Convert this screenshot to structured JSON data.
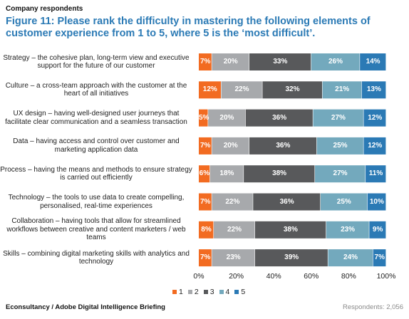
{
  "header": "Company respondents",
  "title": "Figure 11: Please rank the difficulty in mastering the following elements of customer experience from 1 to 5, where 5 is the ‘most difficult’.",
  "source": "Econsultancy / Adobe Digital Intelligence Briefing",
  "respondents": "Respondents: 2,056",
  "chart_data": {
    "type": "bar",
    "orientation": "horizontal",
    "stacked": true,
    "percent_stacked": true,
    "categories": [
      "Strategy – the cohesive plan, long-term view and executive support for the future of our customer",
      "Culture – a cross-team approach with the customer at the heart of all initiatives",
      "UX design – having well-designed user journeys that facilitate clear communication and a seamless transaction",
      "Data – having access and control over customer and marketing application data",
      "Process – having the means and methods to ensure strategy is carried out efficiently",
      "Technology – the tools to use data to create compelling, personalised, real-time experiences",
      "Collaboration – having tools that allow for streamlined workflows between creative and content marketers / web teams",
      "Skills – combining digital marketing skills with analytics and technology"
    ],
    "series": [
      {
        "name": "1",
        "color": "#f26b21",
        "values": [
          7,
          12,
          5,
          7,
          6,
          7,
          8,
          7
        ]
      },
      {
        "name": "2",
        "color": "#a7a9ac",
        "values": [
          20,
          22,
          20,
          20,
          18,
          22,
          22,
          23
        ]
      },
      {
        "name": "3",
        "color": "#58595b",
        "values": [
          33,
          32,
          36,
          36,
          38,
          36,
          38,
          39
        ]
      },
      {
        "name": "4",
        "color": "#73a9bd",
        "values": [
          26,
          21,
          27,
          25,
          27,
          25,
          23,
          24
        ]
      },
      {
        "name": "5",
        "color": "#2b7ab5",
        "values": [
          14,
          13,
          12,
          12,
          11,
          10,
          9,
          7
        ]
      }
    ],
    "x_ticks": [
      "0%",
      "20%",
      "40%",
      "60%",
      "80%",
      "100%"
    ],
    "xlim": [
      0,
      100
    ],
    "legend_position": "bottom",
    "grid": false
  }
}
